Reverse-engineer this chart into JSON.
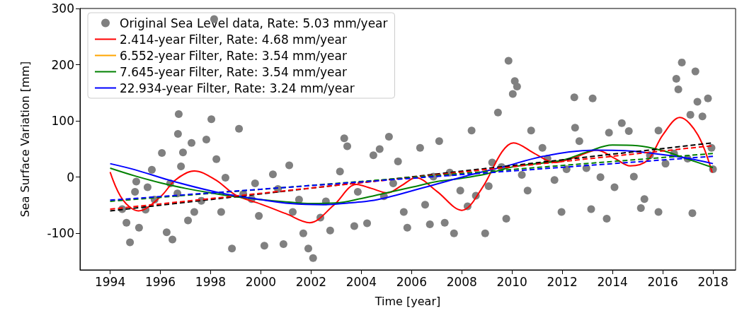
{
  "chart_data": {
    "type": "line",
    "xlabel": "Time [year]",
    "ylabel": "Sea Surface Variation [mm]",
    "xlim": [
      1992.8,
      2018.9
    ],
    "xticks": [
      1994,
      1996,
      1998,
      2000,
      2002,
      2004,
      2006,
      2008,
      2010,
      2012,
      2014,
      2016,
      2018
    ],
    "ylim": [
      -165,
      300
    ],
    "yticks": [
      -100,
      0,
      100,
      200,
      300
    ],
    "grid": false,
    "legend": "top left",
    "marker": "none",
    "line_style": "solid",
    "series": [
      {
        "name": "Original Sea Level data, Rate: 5.03 mm/year",
        "type": "scatter",
        "marker": "circle",
        "color": "#808080",
        "x": [
          1994.48,
          1994.65,
          1994.79,
          1994.99,
          1995.04,
          1995.15,
          1995.41,
          1995.49,
          1995.66,
          1995.77,
          1996.06,
          1996.25,
          1996.39,
          1996.48,
          1996.68,
          1996.7,
          1996.73,
          1996.9,
          1996.82,
          1997.1,
          1998.14,
          1997.24,
          1997.35,
          1997.63,
          1997.83,
          1998.03,
          1998.23,
          1998.42,
          1998.59,
          1998.85,
          1999.13,
          1999.3,
          1999.63,
          1999.77,
          1999.92,
          2000.14,
          2000.48,
          2000.68,
          2000.9,
          2001.13,
          2001.27,
          2001.52,
          2001.69,
          2001.89,
          2002.08,
          2002.37,
          2002.59,
          2002.76,
          2003.15,
          2003.32,
          2003.44,
          2003.72,
          2003.86,
          2004.23,
          2004.48,
          2004.73,
          2004.9,
          2005.1,
          2005.27,
          2005.46,
          2005.69,
          2005.83,
          2006.34,
          2006.54,
          2006.73,
          2006.87,
          2007.1,
          2007.32,
          2007.52,
          2007.69,
          2007.94,
          2008.23,
          2008.39,
          2008.56,
          2008.93,
          2009.07,
          2009.21,
          2009.44,
          2009.58,
          2009.86,
          2009.77,
          2010.03,
          2010.11,
          2010.2,
          2010.39,
          2010.62,
          2010.76,
          2011.21,
          2011.41,
          2011.69,
          2011.97,
          2012.17,
          2012.51,
          2012.48,
          2012.68,
          2012.96,
          2013.15,
          2013.21,
          2013.52,
          2013.77,
          2013.86,
          2014.08,
          2014.37,
          2014.65,
          2014.85,
          2015.13,
          2015.27,
          2015.49,
          2015.83,
          2015.83,
          2016.11,
          2016.45,
          2016.54,
          2016.62,
          2016.76,
          2016.99,
          2017.1,
          2017.18,
          2017.3,
          2017.38,
          2017.58,
          2017.8,
          2018.0,
          2017.94
        ],
        "values": [
          -57,
          -81,
          -116,
          -26,
          -8,
          -90,
          -58,
          -18,
          13,
          -40,
          43,
          -98,
          -11,
          -111,
          -29,
          77,
          112,
          44,
          19,
          -77,
          281,
          61,
          -62,
          -42,
          67,
          103,
          32,
          -62,
          -1,
          -127,
          86,
          -30,
          -39,
          -11,
          -69,
          -122,
          5,
          -21,
          -119,
          21,
          -62,
          -40,
          -100,
          -127,
          -144,
          -72,
          -43,
          -95,
          10,
          69,
          55,
          -87,
          -26,
          -82,
          39,
          50,
          -34,
          72,
          -11,
          28,
          -62,
          -90,
          52,
          -49,
          -84,
          1,
          64,
          -81,
          8,
          -100,
          -24,
          -52,
          83,
          -33,
          -100,
          -16,
          26,
          115,
          18,
          207,
          -74,
          148,
          171,
          161,
          4,
          -24,
          83,
          52,
          33,
          -5,
          -62,
          14,
          88,
          142,
          64,
          16,
          -57,
          140,
          0,
          -74,
          79,
          -18,
          96,
          82,
          1,
          -55,
          -39,
          39,
          -62,
          83,
          24,
          42,
          175,
          156,
          204,
          33,
          111,
          -64,
          188,
          134,
          108,
          140,
          14,
          52
        ]
      },
      {
        "name": "2.414-year Filter, Rate: 4.68 mm/year",
        "color": "#ff0000",
        "x": [
          1994,
          1994.5,
          1995.13,
          1996,
          1996.6,
          1997.35,
          1998.2,
          1999,
          2000,
          2001,
          2001.94,
          2002.9,
          2003.8,
          2004.4,
          2005.04,
          2005.6,
          2006.17,
          2007,
          2008,
          2008.8,
          2009.6,
          2010.06,
          2010.9,
          2011.69,
          2012.5,
          2013.38,
          2014.1,
          2014.7,
          2015.4,
          2016,
          2016.68,
          2017.4,
          2017.97
        ],
        "values": [
          9,
          -40,
          -60,
          -35,
          -5,
          11,
          -5,
          -32,
          -48,
          -65,
          -81,
          -50,
          -13,
          -20,
          -28,
          -15,
          -1,
          -25,
          -59,
          -20,
          45,
          61,
          42,
          26,
          35,
          48,
          33,
          20,
          30,
          75,
          106,
          75,
          8
        ]
      },
      {
        "name": "6.552-year Filter, Rate: 3.54 mm/year",
        "color": "#ffa500"
      },
      {
        "name": "7.645-year Filter, Rate: 3.54 mm/year",
        "color": "#008000",
        "x": [
          1994,
          1995,
          1996,
          1997,
          1998,
          1999,
          2000,
          2001,
          2002,
          2003,
          2004,
          2005,
          2006,
          2007,
          2008,
          2009,
          2010,
          2011,
          2012,
          2013,
          2014,
          2015,
          2016,
          2017,
          2018
        ],
        "values": [
          16,
          2,
          -10,
          -20,
          -28,
          -35,
          -40,
          -44,
          -47,
          -46,
          -38,
          -28,
          -18,
          -8,
          -2,
          6,
          18,
          24,
          30,
          45,
          57,
          56,
          47,
          32,
          17
        ]
      },
      {
        "name": "22.934-year Filter, Rate: 3.24 mm/year",
        "color": "#0000ff",
        "x": [
          1994,
          1995,
          1996.48,
          1998.37,
          2000,
          2001.18,
          2002.5,
          2003.5,
          2004.65,
          2006.54,
          2008.42,
          2009.63,
          2011.24,
          2013.3,
          2014.5,
          2015.46,
          2016.8,
          2018
        ],
        "values": [
          24,
          13,
          -7,
          -28,
          -40,
          -47,
          -49,
          -46,
          -40,
          -18,
          5,
          18,
          37,
          48,
          47,
          43,
          35,
          24
        ]
      },
      {
        "color": "#000000",
        "line_style": "dashed",
        "x": [
          1994,
          2018
        ],
        "values": [
          -60,
          61
        ]
      },
      {
        "color": "#ff0000",
        "line_style": "dashed",
        "x": [
          1994,
          2018
        ],
        "values": [
          -57,
          56
        ]
      },
      {
        "color": "#008000",
        "line_style": "dashed",
        "x": [
          1994,
          2018
        ],
        "values": [
          -43,
          42
        ]
      },
      {
        "color": "#0000ff",
        "line_style": "dashed",
        "x": [
          1994,
          2018
        ],
        "values": [
          -41,
          37
        ]
      }
    ]
  }
}
